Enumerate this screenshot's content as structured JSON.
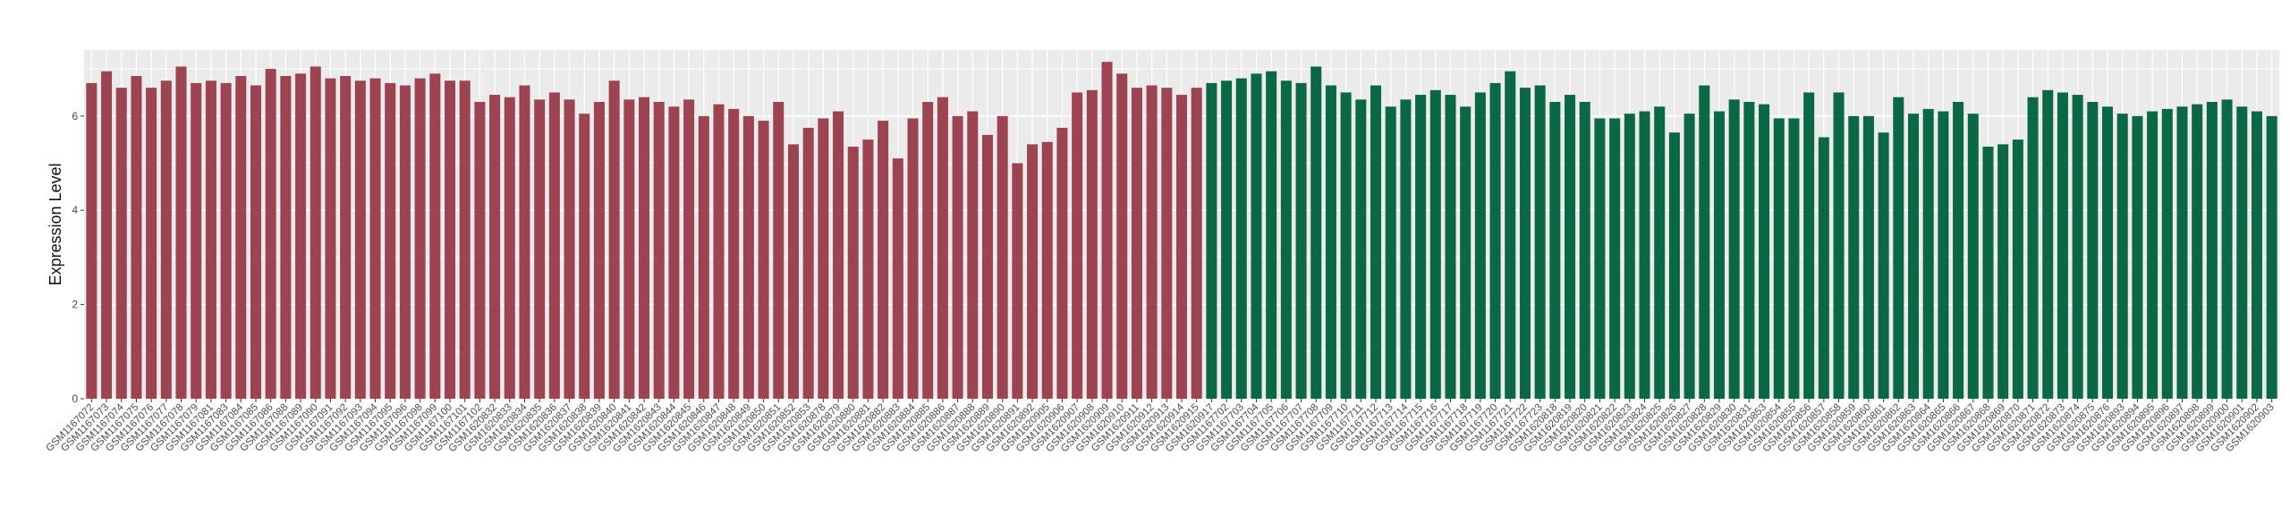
{
  "chart_data": {
    "type": "bar",
    "title": "",
    "xlabel": "",
    "ylabel": "Expression Level",
    "ylim": [
      0,
      7.4
    ],
    "y_ticks": [
      0,
      2,
      4,
      6
    ],
    "grid": true,
    "legend": "none",
    "colors": {
      "group1": "#9c4452",
      "group2": "#0b6845",
      "panel_bg": "#ebebeb",
      "grid": "#ffffff"
    },
    "categories": [
      "GSM1167072",
      "GSM1167073",
      "GSM1167074",
      "GSM1167075",
      "GSM1167076",
      "GSM1167077",
      "GSM1167078",
      "GSM1167079",
      "GSM1167081",
      "GSM1167083",
      "GSM1167084",
      "GSM1167085",
      "GSM1167086",
      "GSM1167088",
      "GSM1167089",
      "GSM1167090",
      "GSM1167091",
      "GSM1167092",
      "GSM1167093",
      "GSM1167094",
      "GSM1167095",
      "GSM1167096",
      "GSM1167098",
      "GSM1167099",
      "GSM1167100",
      "GSM1167101",
      "GSM1167102",
      "GSM1620832",
      "GSM1620833",
      "GSM1620834",
      "GSM1620835",
      "GSM1620836",
      "GSM1620837",
      "GSM1620838",
      "GSM1620839",
      "GSM1620840",
      "GSM1620841",
      "GSM1620842",
      "GSM1620843",
      "GSM1620844",
      "GSM1620845",
      "GSM1620846",
      "GSM1620847",
      "GSM1620848",
      "GSM1620849",
      "GSM1620850",
      "GSM1620851",
      "GSM1620852",
      "GSM1620853",
      "GSM1620878",
      "GSM1620879",
      "GSM1620880",
      "GSM1620881",
      "GSM1620882",
      "GSM1620883",
      "GSM1620884",
      "GSM1620885",
      "GSM1620886",
      "GSM1620887",
      "GSM1620888",
      "GSM1620889",
      "GSM1620890",
      "GSM1620891",
      "GSM1620892",
      "GSM1620905",
      "GSM1620906",
      "GSM1620907",
      "GSM1620908",
      "GSM1620909",
      "GSM1620910",
      "GSM1620911",
      "GSM1620912",
      "GSM1620913",
      "GSM1620914",
      "GSM1620915",
      "GSM1620917",
      "GSM1167702",
      "GSM1167703",
      "GSM1167704",
      "GSM1167705",
      "GSM1167706",
      "GSM1167707",
      "GSM1167708",
      "GSM1167709",
      "GSM1167710",
      "GSM1167711",
      "GSM1167712",
      "GSM1167713",
      "GSM1167714",
      "GSM1167715",
      "GSM1167716",
      "GSM1167717",
      "GSM1167718",
      "GSM1167719",
      "GSM1167720",
      "GSM1167721",
      "GSM1167722",
      "GSM1167723",
      "GSM1620818",
      "GSM1620819",
      "GSM1620820",
      "GSM1620821",
      "GSM1620822",
      "GSM1620823",
      "GSM1620824",
      "GSM1620825",
      "GSM1620826",
      "GSM1620827",
      "GSM1620828",
      "GSM1620829",
      "GSM1620830",
      "GSM1620831",
      "GSM1620853",
      "GSM1620854",
      "GSM1620855",
      "GSM1620856",
      "GSM1620857",
      "GSM1620858",
      "GSM1620859",
      "GSM1620860",
      "GSM1620861",
      "GSM1620862",
      "GSM1620863",
      "GSM1620864",
      "GSM1620865",
      "GSM1620866",
      "GSM1620867",
      "GSM1620868",
      "GSM1620869",
      "GSM1620870",
      "GSM1620871",
      "GSM1620872",
      "GSM1620873",
      "GSM1620874",
      "GSM1620875",
      "GSM1620876",
      "GSM1620893",
      "GSM1620894",
      "GSM1620895",
      "GSM1620896",
      "GSM1620897",
      "GSM1620898",
      "GSM1620899",
      "GSM1620900",
      "GSM1620901",
      "GSM1620902",
      "GSM1620903"
    ],
    "values": [
      6.7,
      6.95,
      6.6,
      6.85,
      6.6,
      6.75,
      7.05,
      6.7,
      6.75,
      6.7,
      6.85,
      6.65,
      7.0,
      6.85,
      6.9,
      7.05,
      6.8,
      6.85,
      6.75,
      6.8,
      6.7,
      6.65,
      6.8,
      6.9,
      6.75,
      6.75,
      6.3,
      6.45,
      6.4,
      6.65,
      6.35,
      6.5,
      6.35,
      6.05,
      6.3,
      6.75,
      6.35,
      6.4,
      6.3,
      6.2,
      6.35,
      6.0,
      6.25,
      6.15,
      6.0,
      5.9,
      6.3,
      5.4,
      5.75,
      5.95,
      6.1,
      5.35,
      5.5,
      5.9,
      5.1,
      5.95,
      6.3,
      6.4,
      6.0,
      6.1,
      5.6,
      6.0,
      5.0,
      5.4,
      5.45,
      5.75,
      6.5,
      6.55,
      7.15,
      6.9,
      6.6,
      6.65,
      6.6,
      6.45,
      6.6,
      6.7,
      6.75,
      6.8,
      6.9,
      6.95,
      6.75,
      6.7,
      7.05,
      6.65,
      6.5,
      6.35,
      6.65,
      6.2,
      6.35,
      6.45,
      6.55,
      6.45,
      6.2,
      6.5,
      6.7,
      6.95,
      6.6,
      6.65,
      6.3,
      6.45,
      6.3,
      5.95,
      5.95,
      6.05,
      6.1,
      6.2,
      5.65,
      6.05,
      6.65,
      6.1,
      6.35,
      6.3,
      6.25,
      5.95,
      5.95,
      6.5,
      5.55,
      6.5,
      6.0,
      6.0,
      5.65,
      6.4,
      6.05,
      6.15,
      6.1,
      6.3,
      6.05,
      5.35,
      5.4,
      5.5,
      6.4,
      6.55,
      6.5,
      6.45,
      6.3,
      6.2,
      6.05,
      6.0,
      6.1,
      6.15,
      6.2,
      6.25,
      6.3,
      6.35,
      6.2,
      6.1,
      6.0
    ],
    "group_split_index": 75
  }
}
